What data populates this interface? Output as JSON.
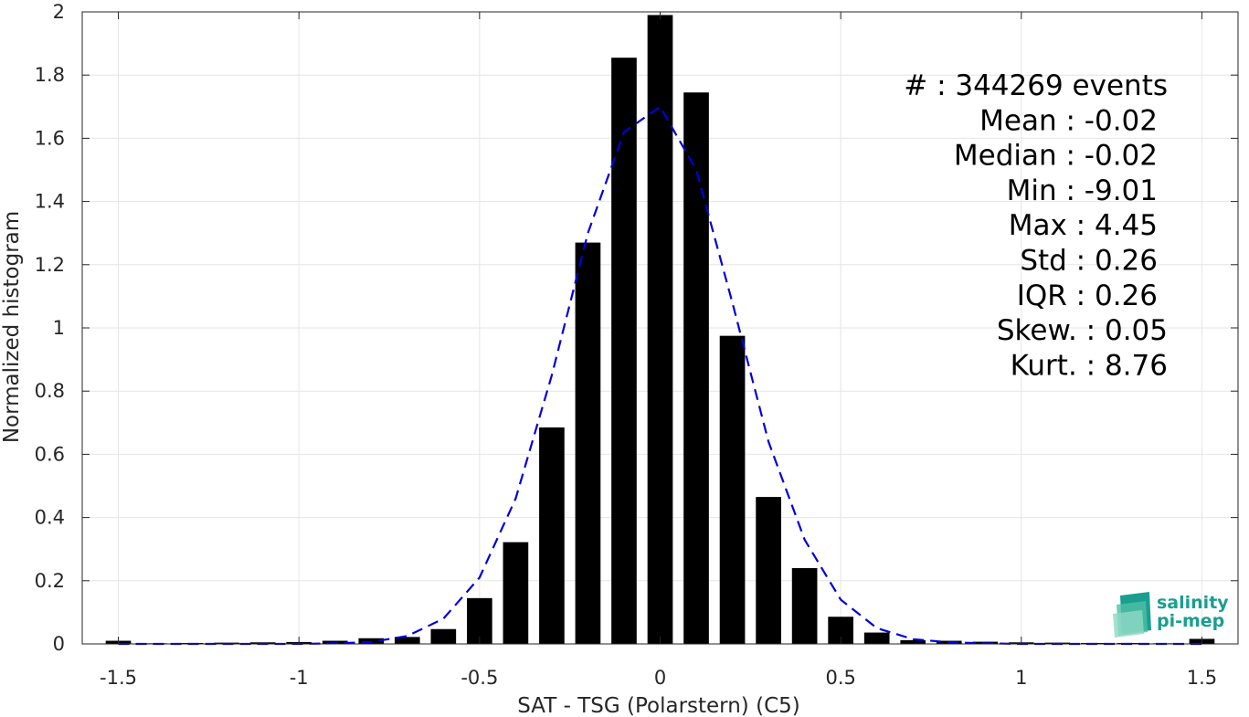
{
  "chart_data": {
    "type": "bar",
    "xlabel": "SAT - TSG (Polarstern) (C5)",
    "ylabel": "Normalized histogram",
    "xlim": [
      -1.6,
      1.6
    ],
    "ylim": [
      0,
      2
    ],
    "xticks": [
      -1.5,
      -1,
      -0.5,
      0,
      0.5,
      1,
      1.5
    ],
    "xtick_labels": [
      "-1.5",
      "-1",
      "-0.5",
      "0",
      "0.5",
      "1",
      "1.5"
    ],
    "yticks": [
      0,
      0.2,
      0.4,
      0.6,
      0.8,
      1,
      1.2,
      1.4,
      1.6,
      1.8,
      2
    ],
    "ytick_labels": [
      "0",
      "0.2",
      "0.4",
      "0.6",
      "0.8",
      "1",
      "1.2",
      "1.4",
      "1.6",
      "1.8",
      "2"
    ],
    "grid": true,
    "bar_color": "#000000",
    "bar_width": 0.07,
    "bars": {
      "x": [
        -1.5,
        -1.4,
        -1.3,
        -1.2,
        -1.1,
        -1.0,
        -0.9,
        -0.8,
        -0.7,
        -0.6,
        -0.5,
        -0.4,
        -0.3,
        -0.2,
        -0.1,
        0.0,
        0.1,
        0.2,
        0.3,
        0.4,
        0.5,
        0.6,
        0.7,
        0.8,
        0.9,
        1.0,
        1.1,
        1.2,
        1.3,
        1.4,
        1.5
      ],
      "values": [
        0.01,
        0.002,
        0.003,
        0.004,
        0.005,
        0.006,
        0.01,
        0.018,
        0.022,
        0.047,
        0.145,
        0.322,
        0.685,
        1.27,
        1.855,
        1.99,
        1.745,
        0.975,
        0.465,
        0.24,
        0.086,
        0.036,
        0.012,
        0.01,
        0.007,
        0.005,
        0.004,
        0.003,
        0.003,
        0.002,
        0.016
      ]
    },
    "fit_curve": {
      "style": "dashed",
      "color": "#0000dd",
      "x": [
        -1.5,
        -1.4,
        -1.3,
        -1.2,
        -1.1,
        -1.0,
        -0.9,
        -0.8,
        -0.7,
        -0.6,
        -0.5,
        -0.4,
        -0.3,
        -0.2,
        -0.1,
        0.0,
        0.1,
        0.2,
        0.3,
        0.4,
        0.5,
        0.6,
        0.7,
        0.8,
        0.9,
        1.0,
        1.1,
        1.2,
        1.3,
        1.4,
        1.5
      ],
      "values": [
        0.0,
        0.0,
        0.0,
        0.0,
        0.0,
        0.0,
        0.002,
        0.006,
        0.025,
        0.08,
        0.21,
        0.46,
        0.85,
        1.3,
        1.62,
        1.7,
        1.5,
        1.08,
        0.64,
        0.33,
        0.14,
        0.05,
        0.015,
        0.005,
        0.002,
        0.0,
        0.0,
        0.0,
        0.0,
        0.0,
        0.0
      ]
    },
    "annotations": [
      "#  : 344269 events",
      "Mean : -0.02",
      "Median : -0.02",
      "Min : -9.01",
      "Max : 4.45",
      "Std : 0.26",
      "IQR : 0.26",
      "Skew. : 0.05",
      "Kurt. : 8.76"
    ]
  },
  "logo": {
    "line1": "salinity",
    "line2": "pi-mep",
    "color": "#1a9e8f"
  }
}
